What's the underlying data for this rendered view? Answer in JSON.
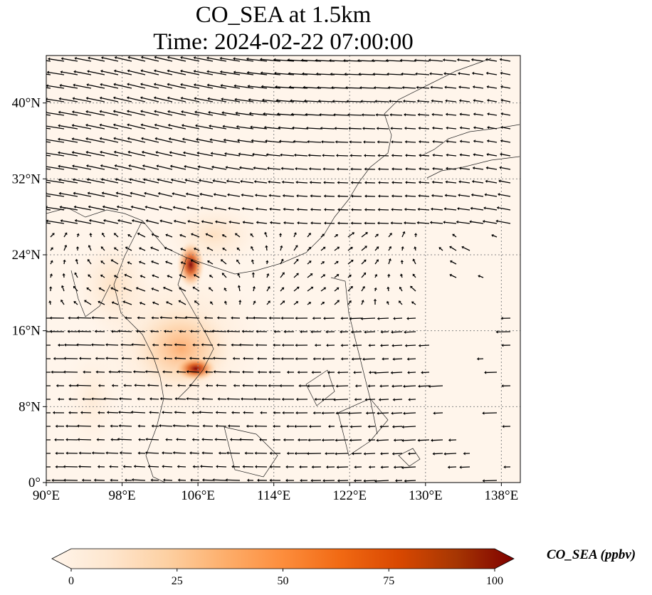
{
  "title": {
    "line1": "CO_SEA at 1.5km",
    "line2": "Time: 2024-02-22 07:00:00"
  },
  "map": {
    "lon_range": [
      90,
      140
    ],
    "lat_range": [
      0,
      45
    ],
    "x_ticks": [
      {
        "value": 90,
        "label": "90°E"
      },
      {
        "value": 98,
        "label": "98°E"
      },
      {
        "value": 106,
        "label": "106°E"
      },
      {
        "value": 114,
        "label": "114°E"
      },
      {
        "value": 122,
        "label": "122°E"
      },
      {
        "value": 130,
        "label": "130°E"
      },
      {
        "value": 138,
        "label": "138°E"
      }
    ],
    "y_ticks": [
      {
        "value": 0,
        "label": "0°"
      },
      {
        "value": 8,
        "label": "8°N"
      },
      {
        "value": 16,
        "label": "16°N"
      },
      {
        "value": 24,
        "label": "24°N"
      },
      {
        "value": 32,
        "label": "32°N"
      },
      {
        "value": 40,
        "label": "40°N"
      }
    ],
    "gridlines": true,
    "field_background": "#fff5eb",
    "vector_color": "#000000"
  },
  "colorbar": {
    "label": "CO_SEA (ppbv)",
    "min": 0,
    "max": 100,
    "ticks": [
      {
        "value": 0,
        "label": "0"
      },
      {
        "value": 25,
        "label": "25"
      },
      {
        "value": 50,
        "label": "50"
      },
      {
        "value": 75,
        "label": "75"
      },
      {
        "value": 100,
        "label": "100"
      }
    ],
    "extend": "both",
    "colors": [
      "#fff5eb",
      "#fee6ce",
      "#fdd0a2",
      "#fdae6b",
      "#fd8d3c",
      "#f16913",
      "#d94801",
      "#a63603",
      "#7f0000"
    ]
  }
}
